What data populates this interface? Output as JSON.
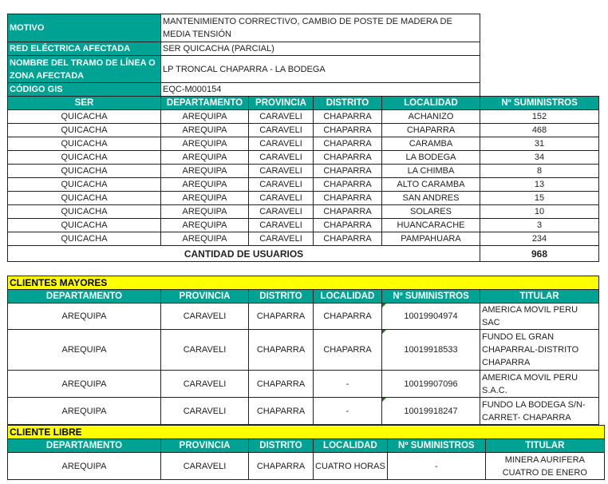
{
  "info": {
    "motivo_label": "MOTIVO",
    "motivo": "MANTENIMIENTO CORRECTIVO, CAMBIO DE POSTE DE MADERA DE MEDIA TENSIÓN",
    "red_label": "RED ELÉCTRICA AFECTADA",
    "red": "SER QUICACHA (PARCIAL)",
    "tramo_label": "NOMBRE DEL TRAMO DE LÍNEA O ZONA AFECTADA",
    "tramo": "LP TRONCAL CHAPARRA - LA BODEGA",
    "gis_label": "CÓDIGO GIS",
    "gis": "EQC-M000154"
  },
  "localidades": {
    "headers": [
      "SER",
      "DEPARTAMENTO",
      "PROVINCIA",
      "DISTRITO",
      "LOCALIDAD",
      "Nº SUMINISTROS"
    ],
    "rows": [
      [
        "QUICACHA",
        "AREQUIPA",
        "CARAVELI",
        "CHAPARRA",
        "ACHANIZO",
        "152"
      ],
      [
        "QUICACHA",
        "AREQUIPA",
        "CARAVELI",
        "CHAPARRA",
        "CHAPARRA",
        "468"
      ],
      [
        "QUICACHA",
        "AREQUIPA",
        "CARAVELI",
        "CHAPARRA",
        "CARAMBA",
        "31"
      ],
      [
        "QUICACHA",
        "AREQUIPA",
        "CARAVELI",
        "CHAPARRA",
        "LA BODEGA",
        "34"
      ],
      [
        "QUICACHA",
        "AREQUIPA",
        "CARAVELI",
        "CHAPARRA",
        "LA CHIMBA",
        "8"
      ],
      [
        "QUICACHA",
        "AREQUIPA",
        "CARAVELI",
        "CHAPARRA",
        "ALTO CARAMBA",
        "13"
      ],
      [
        "QUICACHA",
        "AREQUIPA",
        "CARAVELI",
        "CHAPARRA",
        "SAN ANDRES",
        "15"
      ],
      [
        "QUICACHA",
        "AREQUIPA",
        "CARAVELI",
        "CHAPARRA",
        "SOLARES",
        "10"
      ],
      [
        "QUICACHA",
        "AREQUIPA",
        "CARAVELI",
        "CHAPARRA",
        "HUANCARACHE",
        "3"
      ],
      [
        "QUICACHA",
        "AREQUIPA",
        "CARAVELI",
        "CHAPARRA",
        "PAMPAHUARA",
        "234"
      ]
    ],
    "total_label": "CANTIDAD DE USUARIOS",
    "total": "968"
  },
  "mayores": {
    "title": "CLIENTES MAYORES",
    "headers": [
      "DEPARTAMENTO",
      "PROVINCIA",
      "DISTRITO",
      "LOCALIDAD",
      "Nº SUMINISTROS",
      "TITULAR"
    ],
    "rows": [
      [
        "AREQUIPA",
        "CARAVELI",
        "CHAPARRA",
        "CHAPARRA",
        "10019904974",
        "AMERICA MOVIL PERU SAC"
      ],
      [
        "AREQUIPA",
        "CARAVELI",
        "CHAPARRA",
        "CHAPARRA",
        "10019918533",
        "FUNDO EL GRAN CHAPARRAL-DISTRITO CHAPARRA"
      ],
      [
        "AREQUIPA",
        "CARAVELI",
        "CHAPARRA",
        "-",
        "10019907096",
        "AMERICA MOVIL PERU S.A.C."
      ],
      [
        "AREQUIPA",
        "CARAVELI",
        "CHAPARRA",
        "-",
        "10019918247",
        "FUNDO LA BODEGA S/N-CARRET- CHAPARRA"
      ]
    ]
  },
  "libre": {
    "title": "CLIENTE LIBRE",
    "headers": [
      "DEPARTAMENTO",
      "PROVINCIA",
      "DISTRITO",
      "LOCALIDAD",
      "Nº SUMINISTROS",
      "TITULAR"
    ],
    "rows": [
      [
        "AREQUIPA",
        "CARAVELI",
        "CHAPARRA",
        "CUATRO HORAS",
        "-",
        "MINERA AURIFERA CUATRO DE  ENERO"
      ]
    ]
  },
  "colors": {
    "header": "#00a293",
    "section": "#ffff00"
  }
}
